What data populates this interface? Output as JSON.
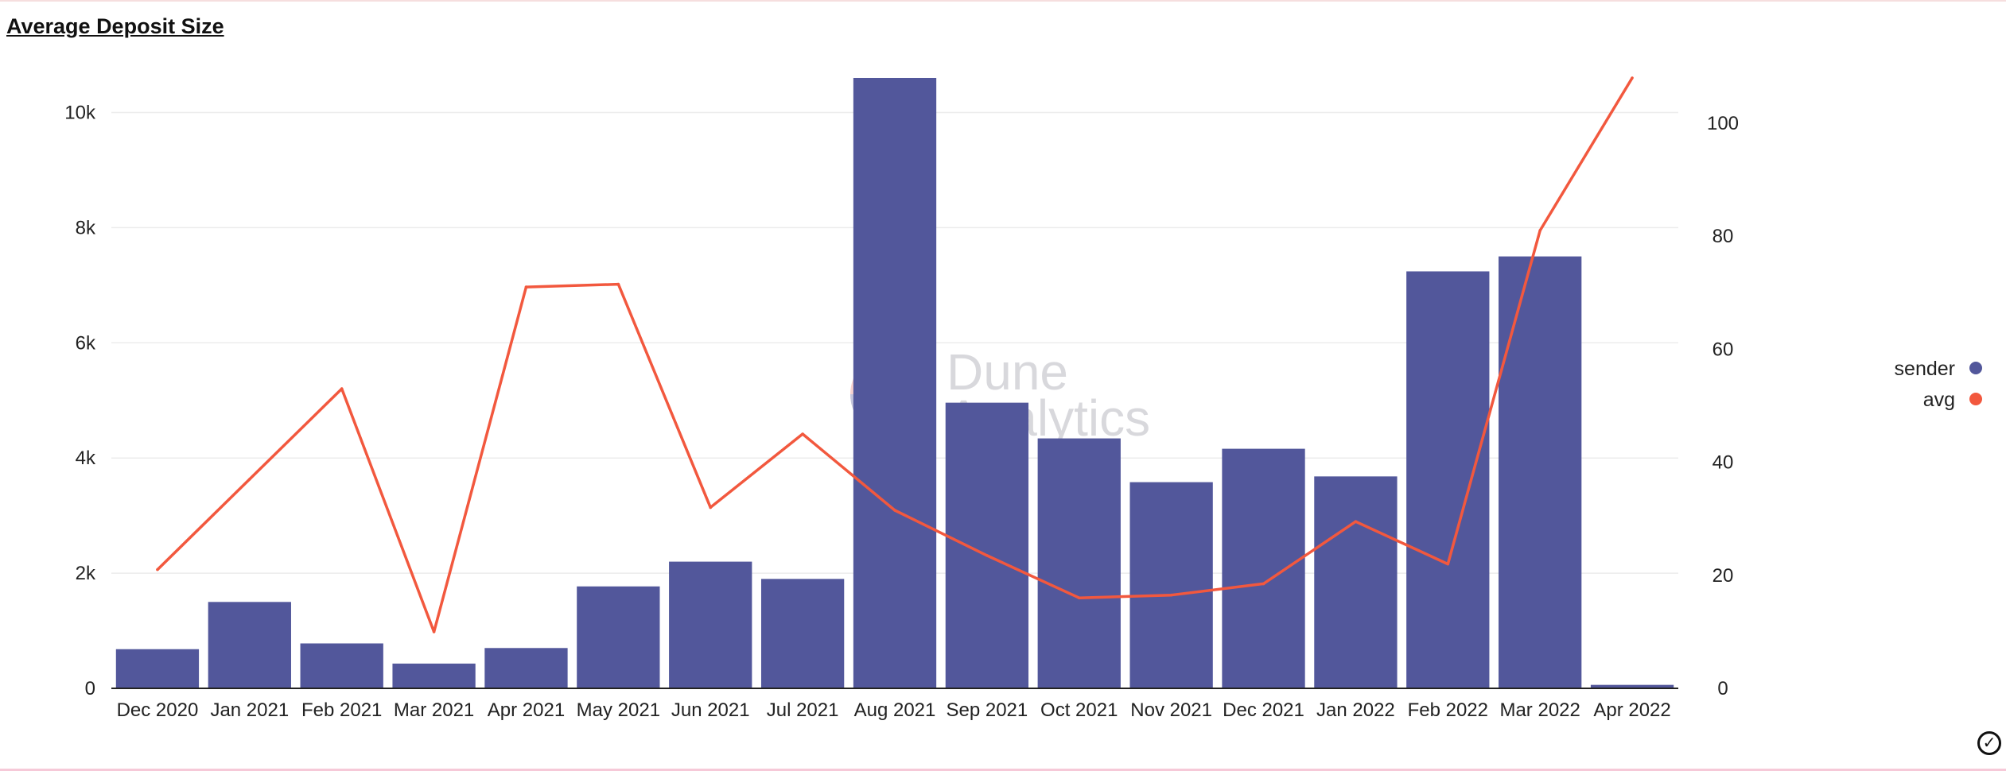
{
  "title": "Average Deposit Size",
  "colors": {
    "sender": "#52579b",
    "avg": "#f2583e",
    "grid": "#ececec",
    "axis": "#222222"
  },
  "watermark": {
    "line1": "Dune",
    "line2": "Analytics"
  },
  "status_icon": "checkmark-circle-icon",
  "chart_data": {
    "type": "bar",
    "categories": [
      "Dec 2020",
      "Jan 2021",
      "Feb 2021",
      "Mar 2021",
      "Apr 2021",
      "May 2021",
      "Jun 2021",
      "Jul 2021",
      "Aug 2021",
      "Sep 2021",
      "Oct 2021",
      "Nov 2021",
      "Dec 2021",
      "Jan 2022",
      "Feb 2022",
      "Mar 2022",
      "Apr 2022"
    ],
    "series": [
      {
        "name": "sender",
        "type": "bar",
        "axis": "left",
        "values": [
          680,
          1500,
          780,
          430,
          700,
          1770,
          2200,
          1900,
          10600,
          4960,
          4340,
          3580,
          4160,
          3680,
          7240,
          7500,
          60
        ]
      },
      {
        "name": "avg",
        "type": "line",
        "axis": "right",
        "values": [
          21,
          37,
          53,
          10,
          71,
          71.5,
          32,
          45,
          31.5,
          23.5,
          16,
          16.5,
          18.5,
          29.5,
          22,
          81,
          108
        ]
      }
    ],
    "y_left": {
      "ylim": [
        0,
        10600
      ],
      "ticks": [
        0,
        2000,
        4000,
        6000,
        8000,
        10000
      ],
      "tick_labels": [
        "0",
        "2k",
        "4k",
        "6k",
        "8k",
        "10k"
      ]
    },
    "y_right": {
      "ylim": [
        0,
        108
      ],
      "ticks": [
        0,
        20,
        40,
        60,
        80,
        100
      ],
      "tick_labels": [
        "0",
        "20",
        "40",
        "60",
        "80",
        "100"
      ]
    },
    "grid": true,
    "legend": {
      "placement": "right",
      "items": [
        "sender",
        "avg"
      ]
    },
    "xlabel": "",
    "ylabel": ""
  }
}
